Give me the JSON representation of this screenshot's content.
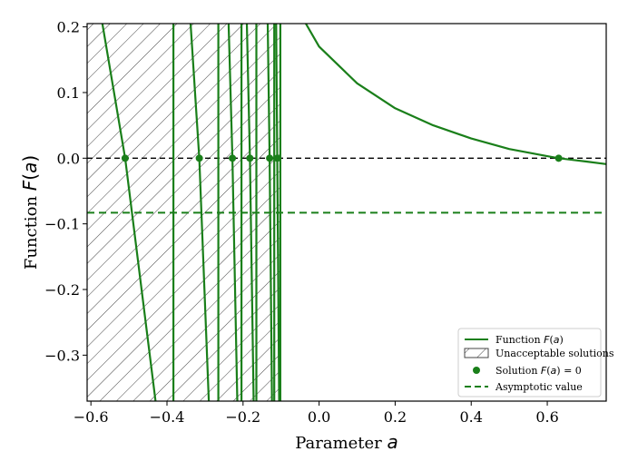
{
  "chart_data": {
    "type": "line",
    "title": "",
    "xlabel": "Parameter a",
    "ylabel": "Function F(a)",
    "xlim": [
      -0.61,
      0.755
    ],
    "ylim": [
      -0.37,
      0.205
    ],
    "xticks": [
      -0.6,
      -0.4,
      -0.2,
      0.0,
      0.2,
      0.4,
      0.6
    ],
    "yticks": [
      -0.3,
      -0.2,
      -0.1,
      0.0,
      0.1,
      0.2
    ],
    "xtick_labels": [
      "−0.6",
      "−0.4",
      "−0.2",
      "0.0",
      "0.2",
      "0.4",
      "0.6"
    ],
    "ytick_labels": [
      "−0.3",
      "−0.2",
      "−0.1",
      "0.0",
      "0.1",
      "0.2"
    ],
    "grid": false,
    "legend_position": "lower-right",
    "colors": {
      "function": "#1a7f1a",
      "zero_line": "#000000",
      "hatch": "#444444"
    },
    "hatched_region": {
      "x_from": -0.61,
      "x_to": -0.1,
      "label": "Unacceptable solutions"
    },
    "reference_lines": [
      {
        "y": 0.0,
        "style": "dashed",
        "color": "black"
      },
      {
        "y": -0.083,
        "style": "dashed",
        "color": "green",
        "label": "Asymptotic value"
      }
    ],
    "series": [
      {
        "name": "Function F(a)",
        "segments": [
          {
            "points": [
              [
                -0.57,
                0.205
              ],
              [
                -0.51,
                0.0
              ],
              [
                -0.43,
                -0.37
              ]
            ]
          },
          {
            "points": [
              [
                -0.383,
                0.205
              ],
              [
                -0.383,
                -0.37
              ]
            ]
          },
          {
            "points": [
              [
                -0.338,
                0.205
              ],
              [
                -0.315,
                0.0
              ],
              [
                -0.29,
                -0.37
              ]
            ]
          },
          {
            "points": [
              [
                -0.265,
                0.205
              ],
              [
                -0.265,
                -0.37
              ]
            ]
          },
          {
            "points": [
              [
                -0.238,
                0.205
              ],
              [
                -0.228,
                0.0
              ],
              [
                -0.215,
                -0.37
              ]
            ]
          },
          {
            "points": [
              [
                -0.204,
                0.205
              ],
              [
                -0.204,
                -0.37
              ]
            ]
          },
          {
            "points": [
              [
                -0.19,
                0.205
              ],
              [
                -0.182,
                0.0
              ],
              [
                -0.172,
                -0.37
              ]
            ]
          },
          {
            "points": [
              [
                -0.165,
                0.205
              ],
              [
                -0.165,
                -0.37
              ]
            ]
          },
          {
            "points": [
              [
                -0.135,
                0.205
              ],
              [
                -0.13,
                0.0
              ],
              [
                -0.124,
                -0.37
              ]
            ]
          },
          {
            "points": [
              [
                -0.118,
                0.205
              ],
              [
                -0.118,
                -0.37
              ]
            ]
          },
          {
            "points": [
              [
                -0.113,
                0.205
              ],
              [
                -0.11,
                0.0
              ],
              [
                -0.105,
                -0.37
              ]
            ]
          },
          {
            "points": [
              [
                -0.102,
                0.205
              ],
              [
                -0.102,
                -0.37
              ]
            ]
          },
          {
            "points": [
              [
                -0.035,
                0.205
              ],
              [
                0.0,
                0.17
              ],
              [
                0.1,
                0.114
              ],
              [
                0.2,
                0.076
              ],
              [
                0.3,
                0.05
              ],
              [
                0.4,
                0.03
              ],
              [
                0.5,
                0.014
              ],
              [
                0.6,
                0.003
              ],
              [
                0.63,
                0.0
              ],
              [
                0.7,
                -0.005
              ],
              [
                0.755,
                -0.009
              ]
            ]
          }
        ]
      },
      {
        "name": "Solution F(a) = 0",
        "type": "scatter",
        "points": [
          [
            -0.51,
            0.0
          ],
          [
            -0.315,
            0.0
          ],
          [
            -0.228,
            0.0
          ],
          [
            -0.182,
            0.0
          ],
          [
            -0.13,
            0.0
          ],
          [
            -0.11,
            0.0
          ],
          [
            0.63,
            0.0
          ]
        ]
      }
    ],
    "legend": [
      {
        "label": "Function F(a)",
        "kind": "line"
      },
      {
        "label": "Unacceptable solutions",
        "kind": "hatch"
      },
      {
        "label": "Solution F(a) = 0",
        "kind": "marker"
      },
      {
        "label": "Asymptotic value",
        "kind": "dashed"
      }
    ]
  }
}
